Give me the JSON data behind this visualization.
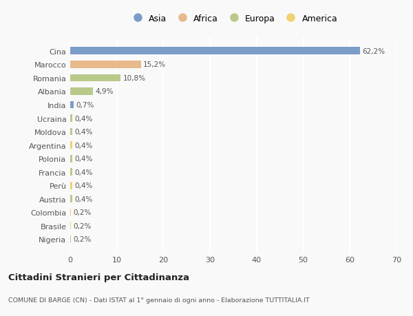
{
  "countries": [
    "Cina",
    "Marocco",
    "Romania",
    "Albania",
    "India",
    "Ucraina",
    "Moldova",
    "Argentina",
    "Polonia",
    "Francia",
    "Perù",
    "Austria",
    "Colombia",
    "Brasile",
    "Nigeria"
  ],
  "values": [
    62.2,
    15.2,
    10.8,
    4.9,
    0.7,
    0.4,
    0.4,
    0.4,
    0.4,
    0.4,
    0.4,
    0.4,
    0.2,
    0.2,
    0.2
  ],
  "labels": [
    "62,2%",
    "15,2%",
    "10,8%",
    "4,9%",
    "0,7%",
    "0,4%",
    "0,4%",
    "0,4%",
    "0,4%",
    "0,4%",
    "0,4%",
    "0,4%",
    "0,2%",
    "0,2%",
    "0,2%"
  ],
  "continents": [
    "Asia",
    "Africa",
    "Europa",
    "Europa",
    "Asia",
    "Europa",
    "Europa",
    "America",
    "Europa",
    "Europa",
    "America",
    "Europa",
    "America",
    "America",
    "Africa"
  ],
  "continent_colors": {
    "Asia": "#7b9dc9",
    "Africa": "#e8b98a",
    "Europa": "#b8c98a",
    "America": "#f0d070"
  },
  "legend_order": [
    "Asia",
    "Africa",
    "Europa",
    "America"
  ],
  "xlim": [
    0,
    70
  ],
  "xticks": [
    0,
    10,
    20,
    30,
    40,
    50,
    60,
    70
  ],
  "title": "Cittadini Stranieri per Cittadinanza",
  "subtitle": "COMUNE DI BARGE (CN) - Dati ISTAT al 1° gennaio di ogni anno - Elaborazione TUTTITALIA.IT",
  "bg_color": "#f9f9f9",
  "grid_color": "#ffffff",
  "bar_height": 0.55
}
